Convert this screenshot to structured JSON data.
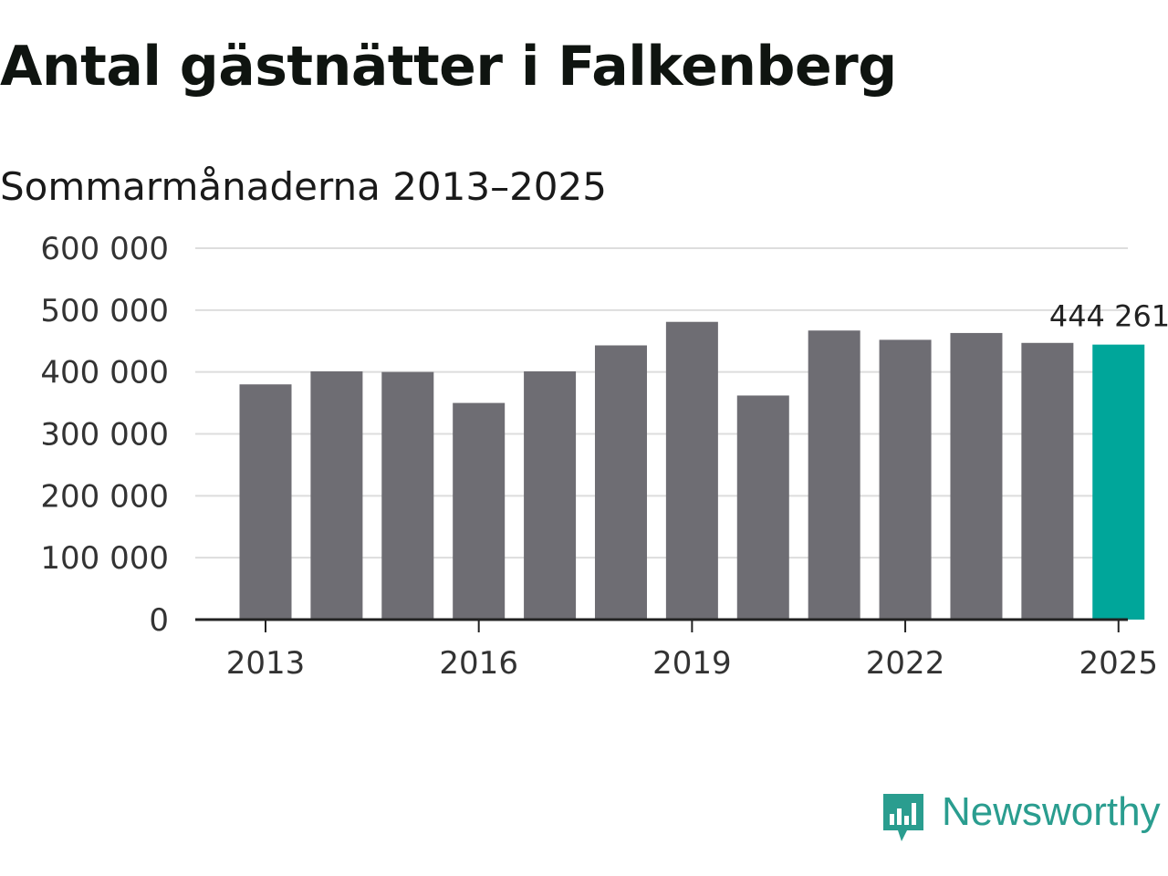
{
  "title": "Antal gästnätter i Falkenberg",
  "subtitle": "Sommarmånaderna 2013–2025",
  "brand": {
    "name": "Newsworthy",
    "icon": "newsworthy-logo-icon",
    "color": "#2a9d8f"
  },
  "chart_data": {
    "type": "bar",
    "categories": [
      "2013",
      "2014",
      "2015",
      "2016",
      "2017",
      "2018",
      "2019",
      "2020",
      "2021",
      "2022",
      "2023",
      "2024",
      "2025"
    ],
    "values": [
      380000,
      401000,
      400000,
      350000,
      401000,
      443000,
      481000,
      362000,
      467000,
      452000,
      463000,
      447000,
      444261
    ],
    "highlight_index": 12,
    "highlight_label": "444 261",
    "x_tick_labels": [
      "2013",
      "2016",
      "2019",
      "2022",
      "2025"
    ],
    "y_ticks": [
      0,
      100000,
      200000,
      300000,
      400000,
      500000,
      600000
    ],
    "y_tick_labels": [
      "0",
      "100 000",
      "200 000",
      "300 000",
      "400 000",
      "500 000",
      "600 000"
    ],
    "ylim": [
      0,
      600000
    ],
    "grid": true,
    "legend": "none",
    "colors": {
      "bar": "#6e6d73",
      "highlight": "#00a69a",
      "grid": "#dddddd",
      "axis": "#222222"
    }
  }
}
